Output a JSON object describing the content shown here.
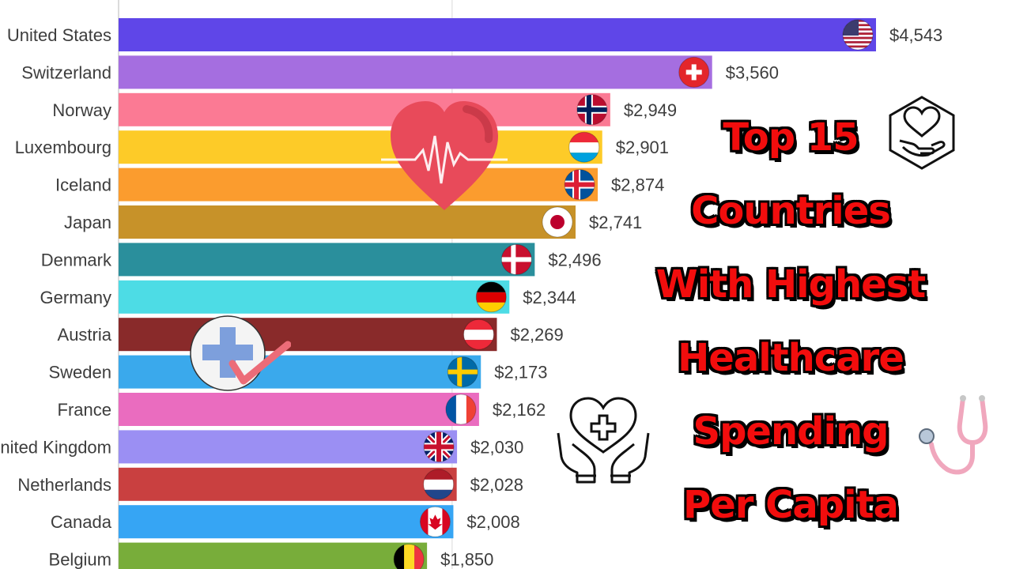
{
  "chart_data": {
    "type": "bar",
    "orientation": "horizontal",
    "categories": [
      "United States",
      "Switzerland",
      "Norway",
      "Luxembourg",
      "Iceland",
      "Japan",
      "Denmark",
      "Germany",
      "Austria",
      "Sweden",
      "France",
      "United Kingdom",
      "Netherlands",
      "Canada",
      "Belgium"
    ],
    "values": [
      4543,
      3560,
      2949,
      2901,
      2874,
      2741,
      2496,
      2344,
      2269,
      2173,
      2162,
      2030,
      2028,
      2008,
      1850
    ],
    "value_labels": [
      "$4,543",
      "$3,560",
      "$2,949",
      "$2,901",
      "$2,874",
      "$2,741",
      "$2,496",
      "$2,344",
      "$2,269",
      "$2,173",
      "$2,162",
      "$2,030",
      "$2,028",
      "$2,008",
      "$1,850"
    ],
    "colors": [
      "#5f46e8",
      "#a56ee0",
      "#fb7a94",
      "#fdcb28",
      "#fb9c2e",
      "#c79229",
      "#2a8f9c",
      "#4ddce5",
      "#892a2a",
      "#3aa9ec",
      "#ea6cbf",
      "#9b8ff3",
      "#c94040",
      "#36a5f4",
      "#78ad3a"
    ],
    "flags": [
      "us-flag-icon",
      "switzerland-flag-icon",
      "norway-flag-icon",
      "luxembourg-flag-icon",
      "iceland-flag-icon",
      "japan-flag-icon",
      "denmark-flag-icon",
      "germany-flag-icon",
      "austria-flag-icon",
      "sweden-flag-icon",
      "france-flag-icon",
      "uk-flag-icon",
      "netherlands-flag-icon",
      "canada-flag-icon",
      "belgium-flag-icon"
    ],
    "xlim": [
      0,
      4543
    ],
    "grid": true,
    "legend": "none"
  },
  "title": {
    "lines": [
      "Top 15",
      "Countries",
      "With Highest",
      "Healthcare",
      "Spending",
      "Per Capita"
    ]
  },
  "decorations": [
    "heart-pulse-icon",
    "medical-cross-check-icon",
    "hand-heart-icon",
    "hands-heart-cross-icon",
    "stethoscope-icon"
  ]
}
